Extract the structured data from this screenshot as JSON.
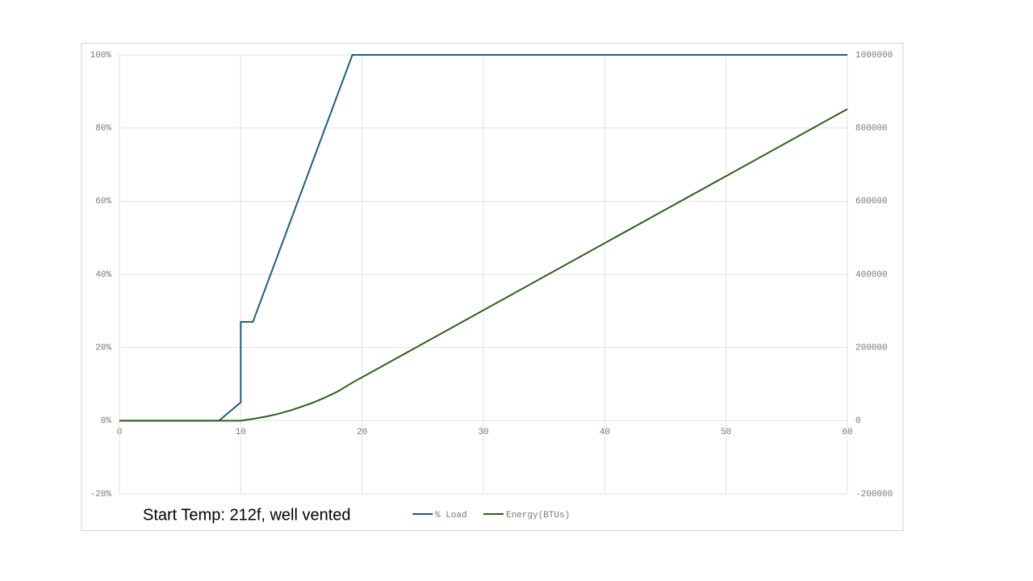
{
  "chart_data": {
    "type": "line",
    "annotation": "Start Temp: 212f, well vented",
    "xlim": [
      0,
      60
    ],
    "xticks": [
      0,
      10,
      20,
      30,
      40,
      50,
      60
    ],
    "ylim": [
      -20,
      100
    ],
    "yticks": [
      {
        "value": -20,
        "label": "-20%"
      },
      {
        "value": 0,
        "label": "0%"
      },
      {
        "value": 20,
        "label": "20%"
      },
      {
        "value": 40,
        "label": "40%"
      },
      {
        "value": 60,
        "label": "60%"
      },
      {
        "value": 80,
        "label": "80%"
      },
      {
        "value": 100,
        "label": "100%"
      }
    ],
    "y2lim": [
      -200000,
      1000000
    ],
    "y2ticks": [
      -200000,
      0,
      200000,
      400000,
      600000,
      800000,
      1000000
    ],
    "grid": true,
    "series": [
      {
        "name": "% Load",
        "color": "#1d5f7c",
        "x": [
          0,
          8.2,
          10,
          10,
          11,
          19.2,
          60
        ],
        "values": [
          0,
          0,
          5,
          27,
          27,
          100,
          100
        ]
      },
      {
        "name": "Energy(BTUs)",
        "color": "#2e5f1c",
        "axis": "y2",
        "x": [
          0,
          10,
          11,
          12,
          13,
          14,
          15,
          16,
          17,
          18,
          19.2,
          60
        ],
        "values": [
          0,
          0,
          4900,
          10600,
          18000,
          27000,
          38000,
          50000,
          64000,
          80000,
          104000,
          852000
        ]
      }
    ]
  }
}
